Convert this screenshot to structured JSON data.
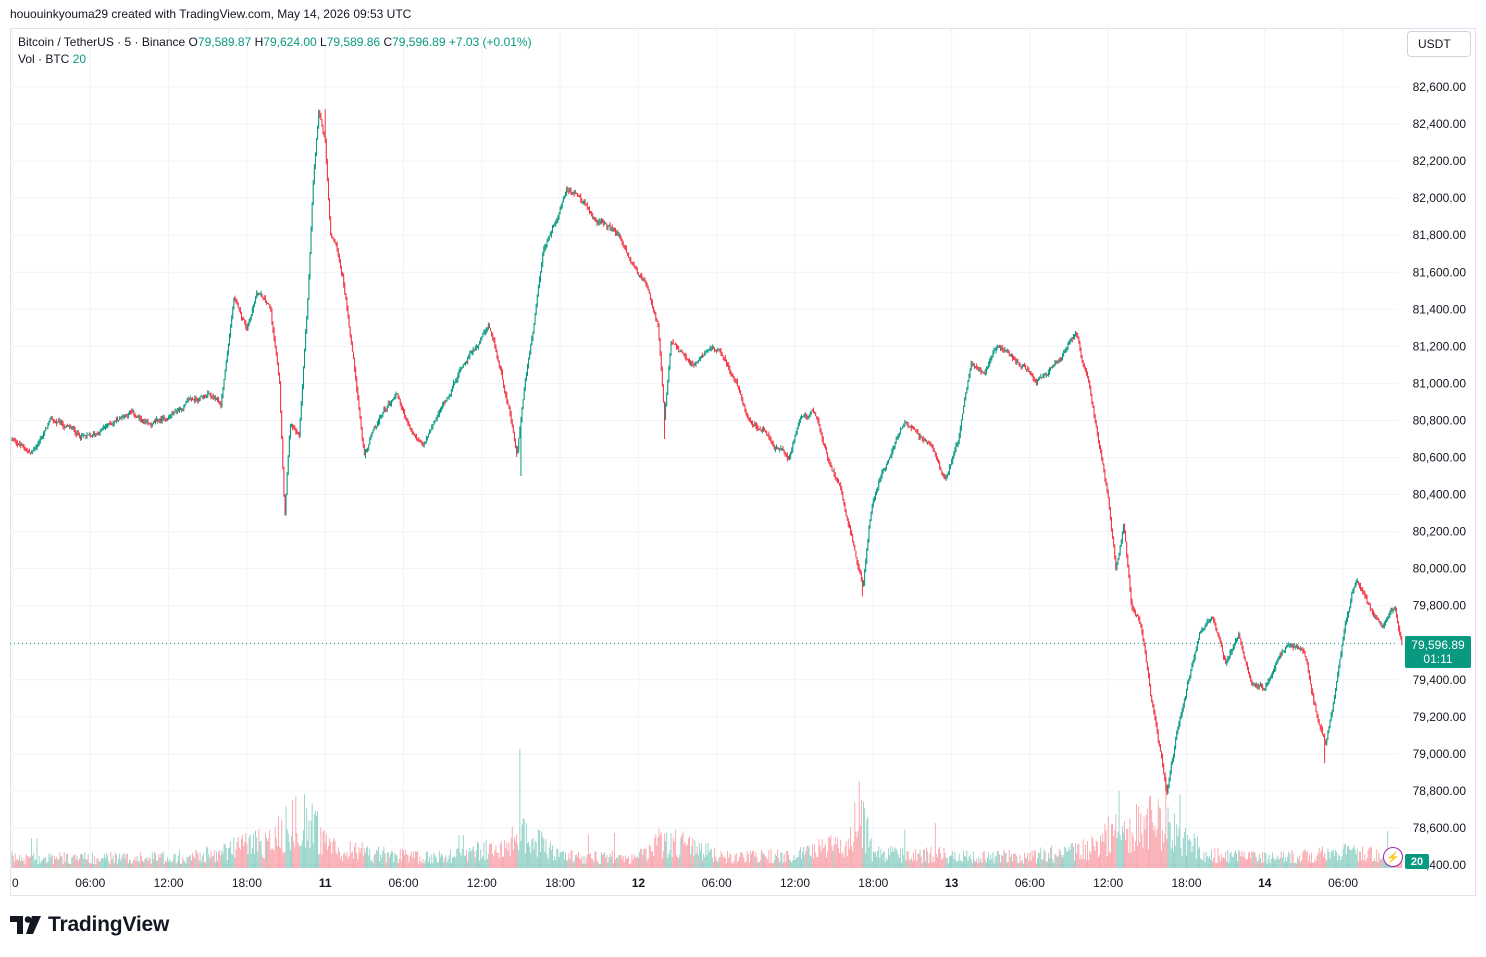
{
  "header": {
    "attribution": "hououinkyouma29 created with TradingView.com, May 14, 2026 09:53 UTC"
  },
  "legend": {
    "symbol": "Bitcoin / TetherUS · 5 · Binance",
    "open_label": "O",
    "open": "79,589.87",
    "high_label": "H",
    "high": "79,624.00",
    "low_label": "L",
    "low": "79,589.86",
    "close_label": "C",
    "close": "79,596.89",
    "change": "+7.03 (+0.01%)",
    "volume_label": "Vol · BTC",
    "volume_value": "20"
  },
  "currency": "USDT",
  "last_price": {
    "value": "79,596.89",
    "countdown": "01:11"
  },
  "volume_tag": "20",
  "brand": {
    "name": "TradingView"
  },
  "colors": {
    "up": "#089981",
    "down": "#f23645",
    "grid": "#f0f3fa",
    "text": "#131722"
  },
  "chart_data": {
    "type": "candlestick",
    "title": "Bitcoin / TetherUS · 5 · Binance",
    "ylim": [
      78400,
      82700
    ],
    "y_ticks": [
      "82,600.00",
      "82,400.00",
      "82,200.00",
      "82,000.00",
      "81,800.00",
      "81,600.00",
      "81,400.00",
      "81,200.00",
      "81,000.00",
      "80,800.00",
      "80,600.00",
      "80,400.00",
      "80,200.00",
      "80,000.00",
      "79,800.00",
      "79,400.00",
      "79,200.00",
      "79,000.00",
      "78,800.00",
      "78,600.00",
      "78,400.00"
    ],
    "y_tick_values": [
      82600,
      82400,
      82200,
      82000,
      81800,
      81600,
      81400,
      81200,
      81000,
      80800,
      80600,
      80400,
      80200,
      80000,
      79800,
      79400,
      79200,
      79000,
      78800,
      78600,
      78400
    ],
    "x_ticks": [
      "0",
      "06:00",
      "12:00",
      "18:00",
      "11",
      "06:00",
      "12:00",
      "18:00",
      "12",
      "06:00",
      "12:00",
      "18:00",
      "13",
      "06:00",
      "12:00",
      "18:00",
      "14",
      "06:00"
    ],
    "x_tick_hours": [
      0,
      6,
      12,
      18,
      24,
      30,
      36,
      42,
      48,
      54,
      60,
      66,
      72,
      78,
      84,
      90,
      96,
      102
    ],
    "x_bold": [
      false,
      false,
      false,
      false,
      true,
      false,
      false,
      false,
      true,
      false,
      false,
      false,
      true,
      false,
      false,
      false,
      true,
      false
    ],
    "price_path": [
      [
        0,
        80700
      ],
      [
        1.5,
        80620
      ],
      [
        3,
        80800
      ],
      [
        4.5,
        80750
      ],
      [
        6,
        80700
      ],
      [
        7.5,
        80780
      ],
      [
        9,
        80850
      ],
      [
        10.5,
        80760
      ],
      [
        12,
        80820
      ],
      [
        13.5,
        80900
      ],
      [
        15,
        80940
      ],
      [
        16,
        80880
      ],
      [
        17,
        81450
      ],
      [
        18,
        81300
      ],
      [
        18.8,
        81500
      ],
      [
        19.8,
        81400
      ],
      [
        20.5,
        81000
      ],
      [
        20.9,
        80300
      ],
      [
        21.3,
        80800
      ],
      [
        22,
        80700
      ],
      [
        22.7,
        81500
      ],
      [
        23.1,
        82100
      ],
      [
        23.5,
        82450
      ],
      [
        24,
        82300
      ],
      [
        24.4,
        81800
      ],
      [
        24.8,
        81750
      ],
      [
        25.3,
        81600
      ],
      [
        25.8,
        81350
      ],
      [
        26.4,
        81000
      ],
      [
        27,
        80600
      ],
      [
        27.5,
        80700
      ],
      [
        28.5,
        80850
      ],
      [
        29.5,
        80950
      ],
      [
        30.5,
        80750
      ],
      [
        31.5,
        80650
      ],
      [
        32.5,
        80800
      ],
      [
        33.5,
        80950
      ],
      [
        34.5,
        81100
      ],
      [
        35.5,
        81200
      ],
      [
        36.5,
        81300
      ],
      [
        37.3,
        81100
      ],
      [
        38,
        80900
      ],
      [
        38.7,
        80600
      ],
      [
        39.3,
        81000
      ],
      [
        40,
        81300
      ],
      [
        40.7,
        81700
      ],
      [
        41.5,
        81850
      ],
      [
        42.5,
        82050
      ],
      [
        43.5,
        82000
      ],
      [
        44.5,
        81900
      ],
      [
        45.5,
        81850
      ],
      [
        46.5,
        81800
      ],
      [
        47.5,
        81650
      ],
      [
        48.5,
        81550
      ],
      [
        49.5,
        81300
      ],
      [
        50,
        80800
      ],
      [
        50.5,
        81200
      ],
      [
        51.5,
        81150
      ],
      [
        52.5,
        81100
      ],
      [
        53.5,
        81200
      ],
      [
        54.5,
        81150
      ],
      [
        55.5,
        81000
      ],
      [
        56.5,
        80800
      ],
      [
        57.5,
        80750
      ],
      [
        58.5,
        80650
      ],
      [
        59.5,
        80600
      ],
      [
        60.5,
        80800
      ],
      [
        61.5,
        80850
      ],
      [
        62.5,
        80600
      ],
      [
        63.5,
        80450
      ],
      [
        64.3,
        80200
      ],
      [
        65.2,
        79900
      ],
      [
        65.8,
        80300
      ],
      [
        66.5,
        80500
      ],
      [
        67.5,
        80650
      ],
      [
        68.5,
        80800
      ],
      [
        69.5,
        80700
      ],
      [
        70.5,
        80650
      ],
      [
        71.5,
        80500
      ],
      [
        72.5,
        80700
      ],
      [
        73.5,
        81100
      ],
      [
        74.5,
        81050
      ],
      [
        75.5,
        81200
      ],
      [
        76.5,
        81150
      ],
      [
        77.5,
        81100
      ],
      [
        78.5,
        81000
      ],
      [
        79.5,
        81050
      ],
      [
        80.5,
        81150
      ],
      [
        81.5,
        81250
      ],
      [
        82.5,
        81000
      ],
      [
        83.3,
        80650
      ],
      [
        84,
        80400
      ],
      [
        84.6,
        80000
      ],
      [
        85.2,
        80250
      ],
      [
        85.8,
        79800
      ],
      [
        86.5,
        79700
      ],
      [
        87.3,
        79300
      ],
      [
        88,
        79000
      ],
      [
        88.5,
        78800
      ],
      [
        89.2,
        79100
      ],
      [
        90,
        79350
      ],
      [
        91,
        79650
      ],
      [
        92,
        79750
      ],
      [
        93,
        79500
      ],
      [
        94,
        79650
      ],
      [
        95,
        79400
      ],
      [
        96,
        79350
      ],
      [
        97,
        79500
      ],
      [
        98,
        79600
      ],
      [
        99,
        79550
      ],
      [
        100,
        79200
      ],
      [
        100.7,
        79050
      ],
      [
        101.5,
        79400
      ],
      [
        102.3,
        79750
      ],
      [
        103,
        79950
      ],
      [
        104,
        79800
      ],
      [
        105,
        79700
      ],
      [
        106,
        79800
      ],
      [
        106.5,
        79600
      ]
    ],
    "spikes": [
      [
        20.9,
        80300
      ],
      [
        39,
        80500
      ],
      [
        65.2,
        79850
      ],
      [
        50,
        80700
      ],
      [
        88.4,
        78800
      ],
      [
        100.6,
        78950
      ],
      [
        24,
        82480
      ]
    ],
    "volume_profile": [
      [
        0,
        14
      ],
      [
        5,
        14
      ],
      [
        10,
        14
      ],
      [
        16,
        20
      ],
      [
        17,
        30
      ],
      [
        20,
        40
      ],
      [
        21,
        60
      ],
      [
        23,
        70
      ],
      [
        24,
        30
      ],
      [
        28,
        20
      ],
      [
        32,
        14
      ],
      [
        38,
        30
      ],
      [
        39,
        50
      ],
      [
        42,
        16
      ],
      [
        48,
        15
      ],
      [
        50,
        40
      ],
      [
        55,
        14
      ],
      [
        60,
        18
      ],
      [
        64,
        35
      ],
      [
        65,
        80
      ],
      [
        66,
        20
      ],
      [
        72,
        18
      ],
      [
        78,
        16
      ],
      [
        82,
        25
      ],
      [
        84,
        45
      ],
      [
        86,
        60
      ],
      [
        88,
        70
      ],
      [
        89,
        45
      ],
      [
        92,
        18
      ],
      [
        96,
        14
      ],
      [
        100,
        18
      ],
      [
        102,
        22
      ],
      [
        106,
        16
      ]
    ],
    "grid": true,
    "legend_position": "top-left"
  }
}
